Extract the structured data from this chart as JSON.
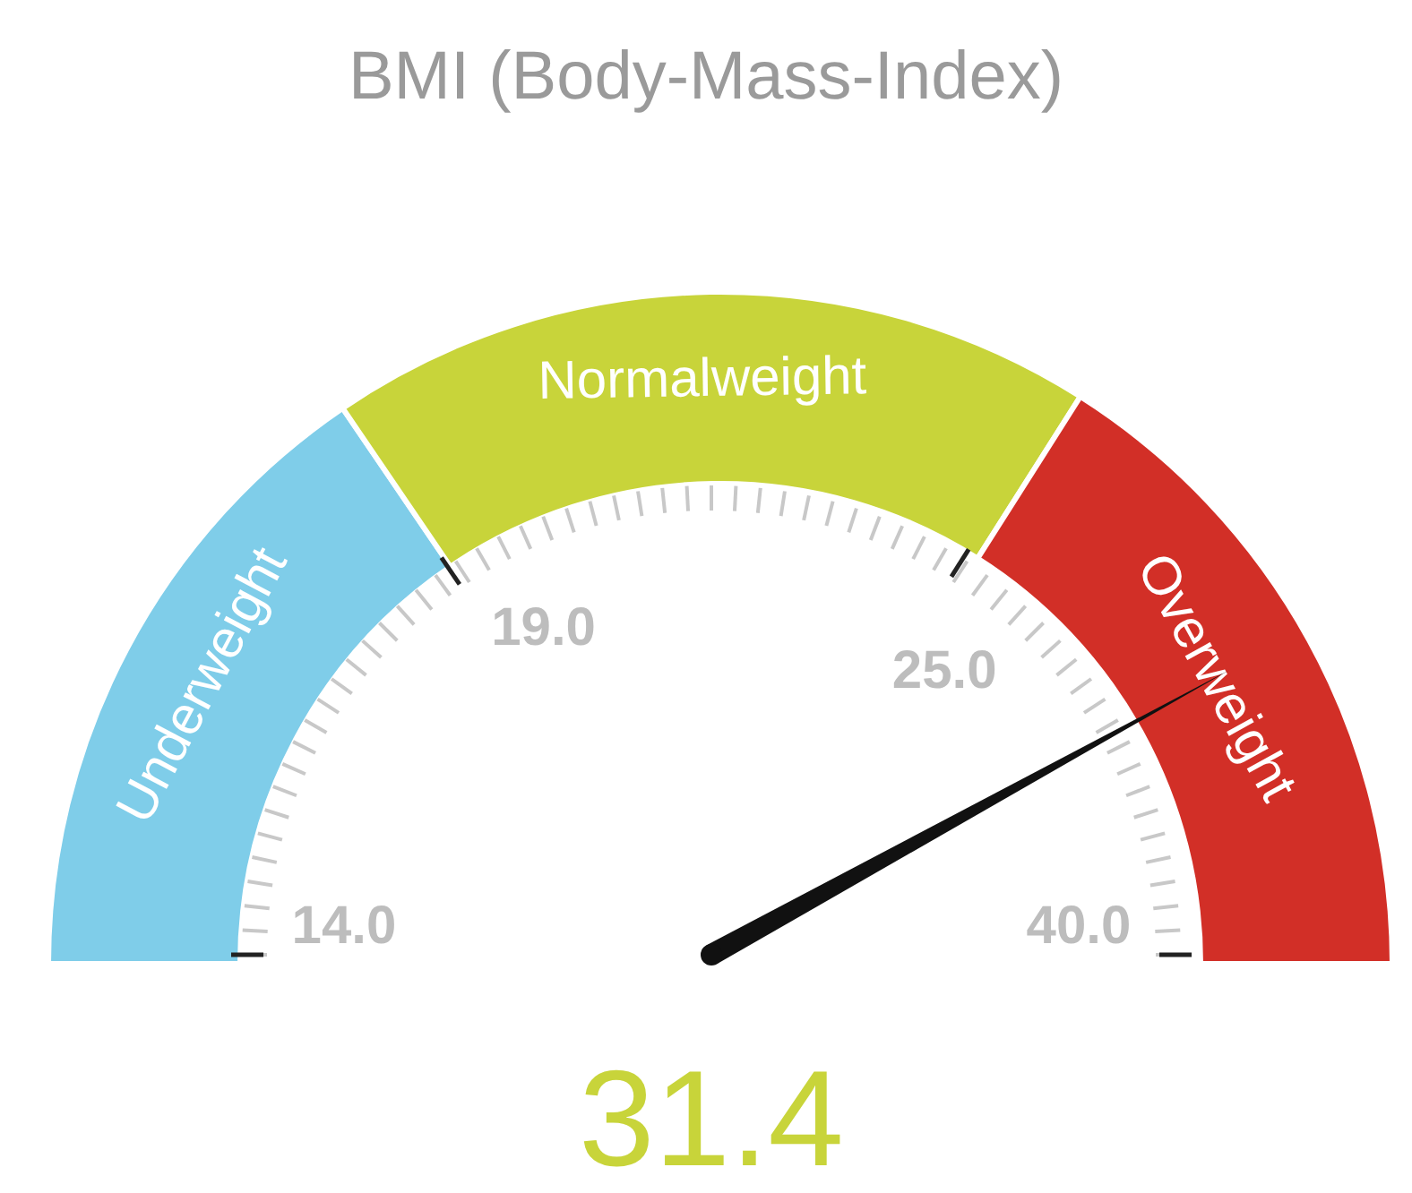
{
  "chart_data": {
    "type": "donut",
    "title": "BMI (Body-Mass-Index)",
    "categories": [
      "Underweight",
      "Normalweight",
      "Overweight"
    ],
    "values": [
      31,
      37,
      32
    ],
    "colors": [
      "#7fcde9",
      "#c8d43a",
      "#d22f27"
    ],
    "needle": "Overweight",
    "annotations": [
      "14.0",
      "19.0",
      "25.0",
      "40.0",
      "31.4"
    ]
  }
}
